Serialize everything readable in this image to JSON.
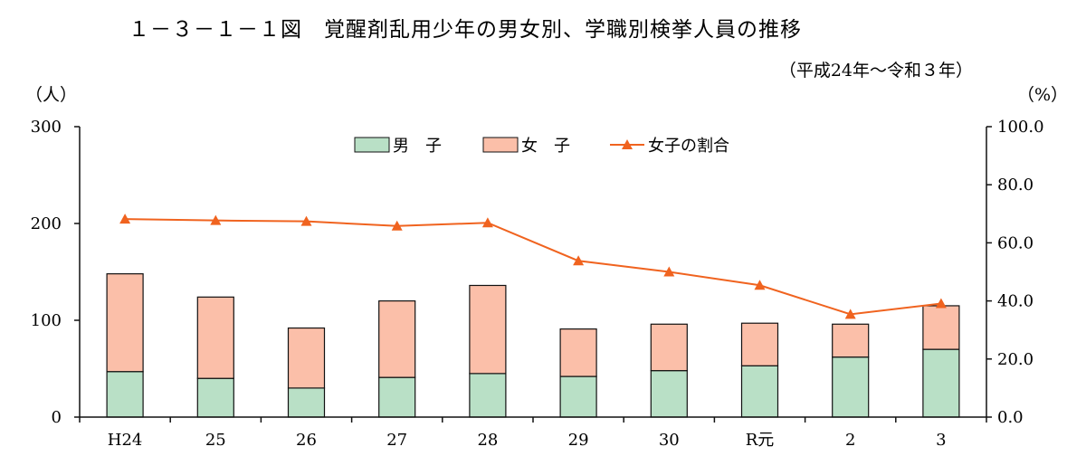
{
  "title": "１－３－１－１図　覚醒剤乱用少年の男女別、学職別検挙人員の推移",
  "subtitle": "（平成24年～令和３年）",
  "left_unit": "（人）",
  "right_unit": "（%）",
  "colors": {
    "male": "#b9e0c6",
    "female": "#fbbfa9",
    "ratio_line": "#f0631f",
    "axis": "#111111"
  },
  "legend": {
    "male": "男　子",
    "female": "女　子",
    "ratio": "女子の割合"
  },
  "chart_data": {
    "type": "bar",
    "stacked": true,
    "categories": [
      "H24",
      "25",
      "26",
      "27",
      "28",
      "29",
      "30",
      "R元",
      "2",
      "3"
    ],
    "series": [
      {
        "name": "男　子",
        "axis": "left",
        "values": [
          47,
          40,
          30,
          41,
          45,
          42,
          48,
          53,
          62,
          70
        ]
      },
      {
        "name": "女　子",
        "axis": "left",
        "values": [
          101,
          84,
          62,
          79,
          91,
          49,
          48,
          44,
          34,
          45
        ]
      },
      {
        "name": "女子の割合",
        "type": "line",
        "axis": "right",
        "values": [
          68.2,
          67.7,
          67.4,
          65.8,
          66.9,
          53.8,
          50.0,
          45.4,
          35.4,
          39.1
        ]
      }
    ],
    "ylim_left": [
      0,
      300
    ],
    "yticks_left": [
      "0",
      "100",
      "200",
      "300"
    ],
    "ylim_right": [
      0,
      100
    ],
    "yticks_right": [
      "0.0",
      "20.0",
      "40.0",
      "60.0",
      "80.0",
      "100.0"
    ],
    "legend_position": "top-center",
    "grid": false
  }
}
